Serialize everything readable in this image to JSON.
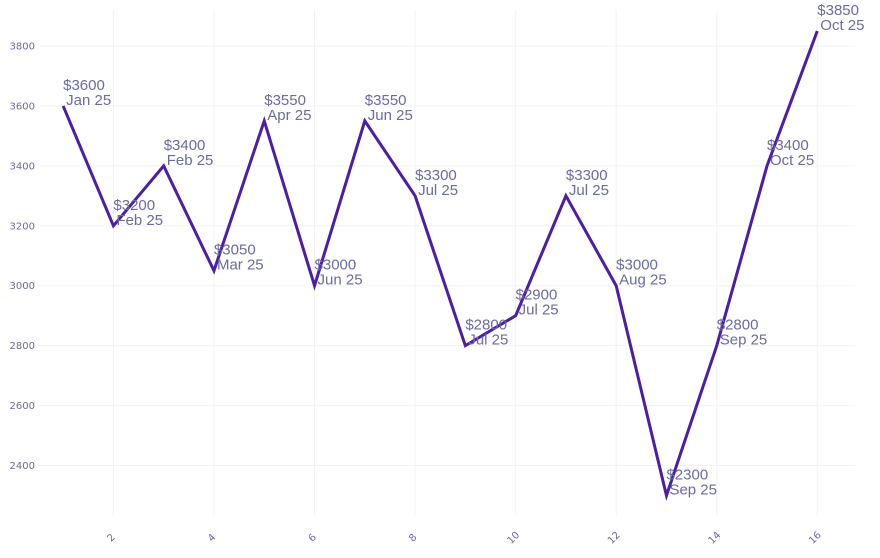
{
  "chart_data": {
    "type": "line",
    "title": "",
    "xlabel": "",
    "ylabel": "",
    "x": [
      1,
      2,
      3,
      4,
      5,
      6,
      7,
      8,
      9,
      10,
      11,
      12,
      13,
      14,
      15,
      16
    ],
    "series": [
      {
        "values": [
          3600,
          3200,
          3400,
          3050,
          3550,
          3000,
          3550,
          3300,
          2800,
          2900,
          3300,
          3000,
          2300,
          2800,
          3400,
          3850
        ],
        "value_labels": [
          "$3600",
          "$3200",
          "$3400",
          "$3050",
          "$3550",
          "$3000",
          "$3550",
          "$3300",
          "$2800",
          "$2900",
          "$3300",
          "$3000",
          "$2300",
          "$2800",
          "$3400",
          "$3850"
        ],
        "month_labels": [
          "Jan 25",
          "Feb 25",
          "Feb 25",
          "Mar 25",
          "Apr 25",
          "Jun 25",
          "Jun 25",
          "Jul 25",
          "Jul 25",
          "Jul 25",
          "Jul 25",
          "Aug 25",
          "Sep 25",
          "Sep 25",
          "Oct 25",
          "Oct 25"
        ]
      }
    ],
    "x_ticks": [
      2,
      4,
      6,
      8,
      10,
      12,
      14,
      16
    ],
    "y_ticks": [
      2400,
      2600,
      2800,
      3000,
      3200,
      3400,
      3600,
      3800
    ],
    "xlim": [
      0.5,
      16.75
    ],
    "ylim": [
      2235,
      3920
    ],
    "grid": true,
    "legend": "none",
    "colors": {
      "line": "#4a1ea6",
      "label": "#6b6b9e",
      "tick": "#6b6b9e",
      "grid": "#f3f3f6"
    }
  }
}
